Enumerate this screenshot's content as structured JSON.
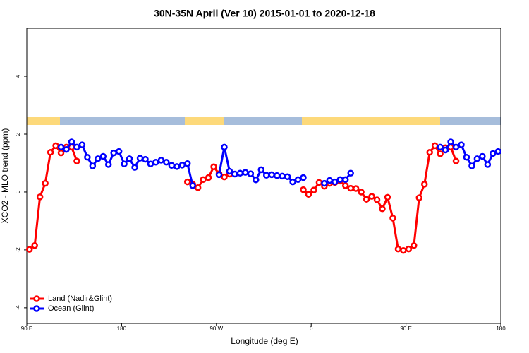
{
  "chart_data": {
    "type": "line",
    "title": "30N-35N April (Ver 10)   2015-01-01 to 2020-12-18",
    "x_label": "Longitude (deg E)",
    "y_label": "XCO2 - MLO trend (ppm)",
    "xlim": [
      90,
      540
    ],
    "ylim": [
      -4.54,
      5.66
    ],
    "xticks": [
      {
        "value": 90,
        "label": "90 E"
      },
      180,
      {
        "value": 270,
        "label": "90 W"
      },
      {
        "value": 360,
        "label": "0"
      },
      {
        "value": 450,
        "label": "90 E"
      },
      {
        "value": 540,
        "label": "180"
      }
    ],
    "yticks": [
      -4,
      -2,
      0,
      2,
      4
    ],
    "legend": "bottom-left",
    "series": [
      {
        "name": "Land (Nadir&Glint)",
        "color": "#ff0000",
        "x": [
          92.5,
          97.5,
          102.5,
          107.5,
          112.5,
          117.5,
          122.5,
          127.5,
          132.5,
          137.5,
          190,
          242.5,
          247.5,
          252.5,
          257.5,
          262.5,
          267.5,
          272.5,
          277.5,
          282.5,
          320,
          352.5,
          357.5,
          362.5,
          367.5,
          372.5,
          377.5,
          382.5,
          387.5,
          392.5,
          397.5,
          402.5,
          407.5,
          412.5,
          417.5,
          422.5,
          427.5,
          432.5,
          437.5,
          442.5,
          447.5,
          452.5,
          457.5,
          462.5,
          467.5,
          472.5,
          477.5,
          482.5,
          487.5,
          492.5,
          497.5
        ],
        "values": [
          -1.98,
          -1.85,
          -0.17,
          0.3,
          1.37,
          1.6,
          1.35,
          1.55,
          1.55,
          1.07,
          null,
          0.35,
          0.27,
          0.15,
          0.43,
          0.5,
          0.87,
          0.63,
          0.52,
          0.62,
          null,
          0.08,
          -0.08,
          0.07,
          0.33,
          0.2,
          0.3,
          0.33,
          0.38,
          0.22,
          0.13,
          0.12,
          0.0,
          -0.25,
          -0.15,
          -0.27,
          -0.58,
          -0.18,
          -0.9,
          -1.97,
          -2.02,
          -1.97,
          -1.85,
          -0.2,
          0.27,
          1.37,
          1.6,
          1.32,
          1.53,
          1.55,
          1.07
        ]
      },
      {
        "name": "Ocean (Glint)",
        "color": "#0000ff",
        "x": [
          122.5,
          127.5,
          132.5,
          137.5,
          142.5,
          147.5,
          152.5,
          157.5,
          162.5,
          167.5,
          172.5,
          177.5,
          182.5,
          187.5,
          192.5,
          197.5,
          202.5,
          207.5,
          212.5,
          217.5,
          222.5,
          227.5,
          232.5,
          237.5,
          242.5,
          247.5,
          260,
          272.5,
          277.5,
          282.5,
          287.5,
          292.5,
          297.5,
          302.5,
          307.5,
          312.5,
          317.5,
          322.5,
          327.5,
          332.5,
          337.5,
          342.5,
          347.5,
          352.5,
          362,
          372.5,
          377.5,
          382.5,
          387.5,
          392.5,
          397.5,
          440,
          482.5,
          487.5,
          492.5,
          497.5,
          502.5,
          507.5,
          512.5,
          517.5,
          522.5,
          527.5,
          532.5,
          537.5
        ],
        "values": [
          1.55,
          1.47,
          1.73,
          1.55,
          1.63,
          1.2,
          0.9,
          1.15,
          1.23,
          0.95,
          1.35,
          1.4,
          0.97,
          1.15,
          0.85,
          1.17,
          1.13,
          0.97,
          1.03,
          1.1,
          1.03,
          0.92,
          0.88,
          0.93,
          0.98,
          0.22,
          null,
          0.6,
          1.55,
          0.72,
          0.62,
          0.65,
          0.68,
          0.63,
          0.42,
          0.77,
          0.58,
          0.6,
          0.57,
          0.55,
          0.53,
          0.35,
          0.43,
          0.5,
          null,
          0.3,
          0.4,
          0.35,
          0.43,
          0.43,
          0.65,
          null,
          1.55,
          1.45,
          1.73,
          1.55,
          1.63,
          1.2,
          0.9,
          1.15,
          1.23,
          0.95,
          1.33,
          1.4
        ]
      }
    ]
  }
}
